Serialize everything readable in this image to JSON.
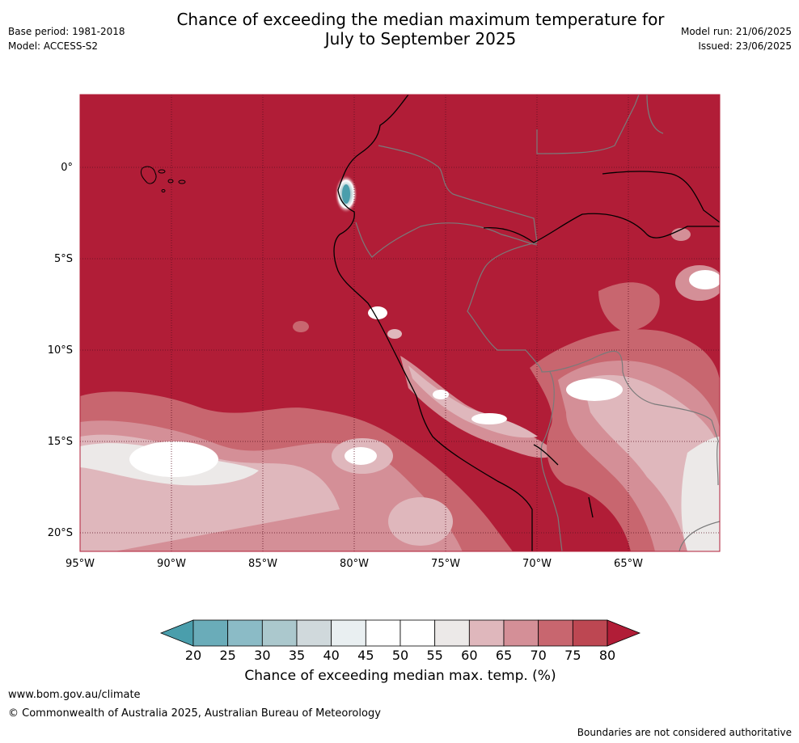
{
  "header": {
    "title_line1": "Chance of exceeding the median maximum temperature for",
    "title_line2": "July to September 2025",
    "base_period": "Base period: 1981-2018",
    "model": "Model: ACCESS-S2",
    "model_run": "Model run: 21/06/2025",
    "issued": "Issued: 23/06/2025"
  },
  "map": {
    "lat_labels": [
      "0°",
      "5°S",
      "10°S",
      "15°S",
      "20°S"
    ],
    "lon_labels": [
      "95°W",
      "90°W",
      "85°W",
      "80°W",
      "75°W",
      "70°W",
      "65°W"
    ],
    "lat_range": [
      -21,
      4
    ],
    "lon_range": [
      -95,
      -60
    ],
    "background_color": "#b11d37",
    "grid": true
  },
  "colorbar": {
    "ticks": [
      "20",
      "25",
      "30",
      "35",
      "40",
      "45",
      "50",
      "55",
      "60",
      "65",
      "70",
      "75",
      "80"
    ],
    "colors": [
      "#4a9eac",
      "#6aacb9",
      "#8bbbc6",
      "#abc8cd",
      "#d0d9dc",
      "#e9eff1",
      "#ffffff",
      "#ffffff",
      "#ece9e8",
      "#dfb7bc",
      "#d48f97",
      "#c8666f",
      "#bd4752",
      "#b11d37"
    ],
    "title": "Chance of exceeding median max. temp. (%)"
  },
  "footer": {
    "url": "www.bom.gov.au/climate",
    "copyright": "© Commonwealth of Australia 2025, Australian Bureau of Meteorology",
    "note": "Boundaries are not considered authoritative"
  }
}
